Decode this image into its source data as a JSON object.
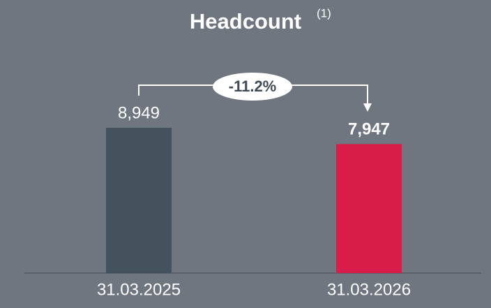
{
  "chart_data": {
    "type": "bar",
    "title": "Headcount",
    "title_note": "(1)",
    "categories": [
      "31.03.2025",
      "31.03.2026"
    ],
    "values": [
      8949,
      7947
    ],
    "value_labels": [
      "8,949",
      "7,947"
    ],
    "colors": [
      "#44525e",
      "#d81e48"
    ],
    "annotation": "-11.2%"
  }
}
